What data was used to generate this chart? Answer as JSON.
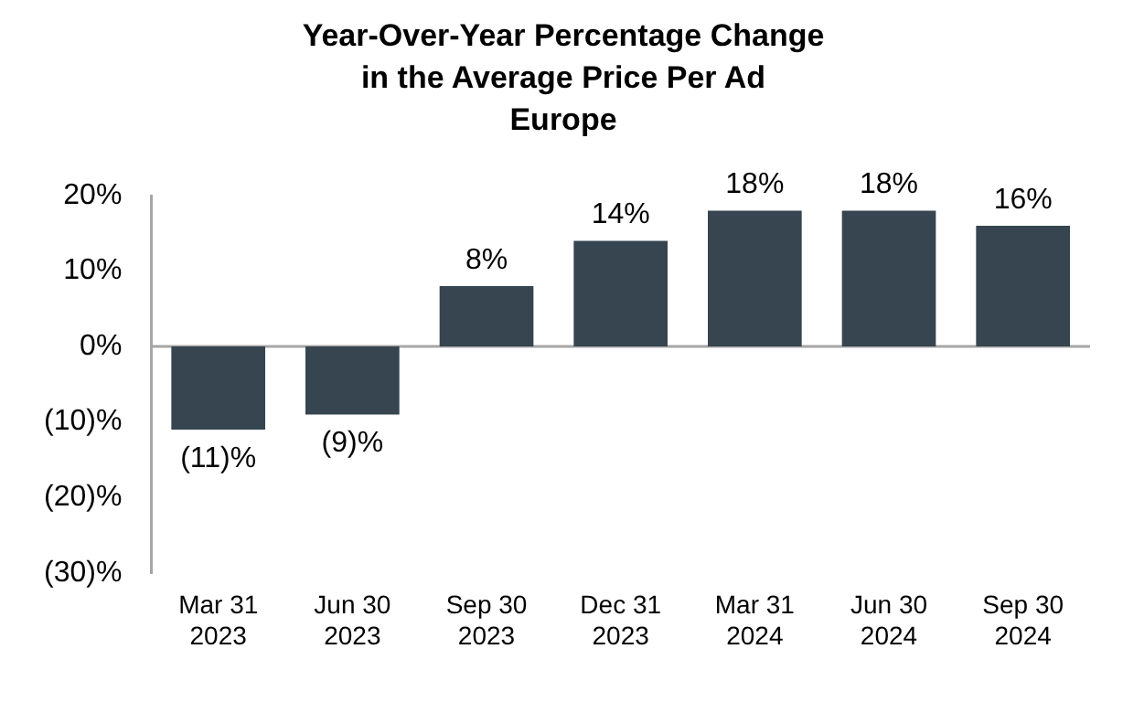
{
  "chart_data": {
    "type": "bar",
    "title": "Year-Over-Year Percentage Change in the Average Price Per Ad",
    "subtitle": "Europe",
    "categories": [
      "Mar 31 2023",
      "Jun 30 2023",
      "Sep 30 2023",
      "Dec 31 2023",
      "Mar 31 2024",
      "Jun 30 2024",
      "Sep 30 2024"
    ],
    "values": [
      -11,
      -9,
      8,
      14,
      18,
      18,
      16
    ],
    "value_labels": [
      "(11)%",
      "(9)%",
      "8%",
      "14%",
      "18%",
      "18%",
      "16%"
    ],
    "color": "#36454f",
    "ylim": [
      -30,
      20
    ],
    "yticks": [
      {
        "value": -30,
        "label": "(30)%"
      },
      {
        "value": -20,
        "label": "(20)%"
      },
      {
        "value": -10,
        "label": "(10)%"
      },
      {
        "value": 0,
        "label": "0%"
      },
      {
        "value": 10,
        "label": "10%"
      },
      {
        "value": 20,
        "label": "20%"
      }
    ],
    "ref_lines": [
      {
        "axis": "y",
        "value": 0,
        "color": "#a6a6a6"
      }
    ],
    "grid": false,
    "legend": false
  }
}
